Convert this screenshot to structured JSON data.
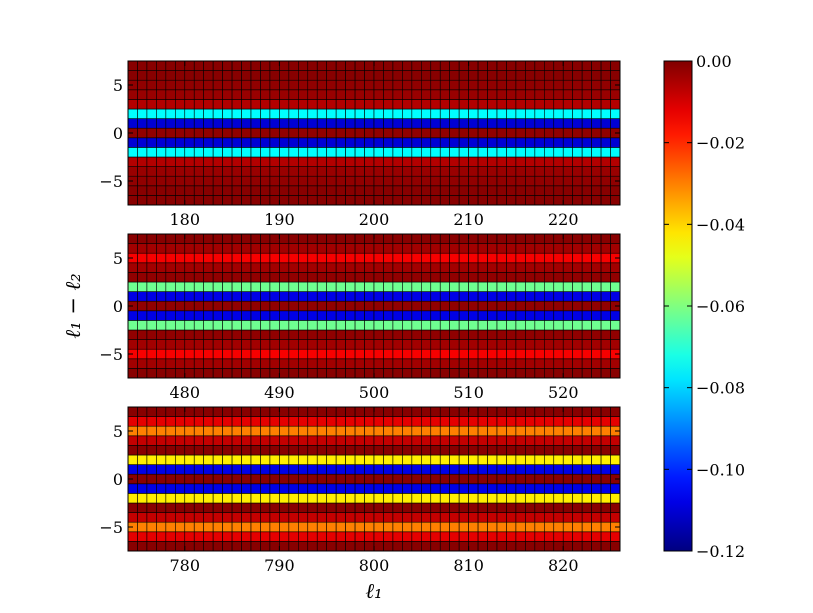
{
  "figure": {
    "ylabel": "ℓ₁ − ℓ₂",
    "xlabel": "ℓ₁"
  },
  "colorbar": {
    "colormap": "jet",
    "range": [
      -0.12,
      0.0
    ],
    "ticks": [
      "0.00",
      "−0.02",
      "−0.04",
      "−0.06",
      "−0.08",
      "−0.10",
      "−0.12"
    ],
    "tick_values": [
      0.0,
      -0.02,
      -0.04,
      -0.06,
      -0.08,
      -0.1,
      -0.12
    ]
  },
  "chart_data": [
    {
      "type": "heatmap",
      "xlim": [
        174,
        226
      ],
      "ylim": [
        -7.5,
        7.5
      ],
      "x_ticks": [
        180,
        190,
        200,
        210,
        220
      ],
      "y_ticks": [
        5,
        0,
        -5
      ],
      "y_tick_labels": [
        "5",
        "0",
        "−5"
      ],
      "rows_y": [
        -7,
        -6,
        -5,
        -4,
        -3,
        -2,
        -1,
        0,
        1,
        2,
        3,
        4,
        5,
        6,
        7
      ],
      "row_values": [
        -0.001,
        -0.001,
        -0.002,
        -0.003,
        -0.006,
        -0.075,
        -0.11,
        -0.002,
        -0.11,
        -0.075,
        -0.006,
        -0.003,
        -0.002,
        -0.001,
        -0.001
      ]
    },
    {
      "type": "heatmap",
      "xlim": [
        474,
        526
      ],
      "ylim": [
        -7.5,
        7.5
      ],
      "x_ticks": [
        480,
        490,
        500,
        510,
        520
      ],
      "y_ticks": [
        5,
        0,
        -5
      ],
      "y_tick_labels": [
        "5",
        "0",
        "−5"
      ],
      "rows_y": [
        -7,
        -6,
        -5,
        -4,
        -3,
        -2,
        -1,
        0,
        1,
        2,
        3,
        4,
        5,
        6,
        7
      ],
      "row_values": [
        -0.001,
        -0.004,
        -0.014,
        -0.004,
        -0.002,
        -0.062,
        -0.108,
        -0.002,
        -0.108,
        -0.062,
        -0.002,
        -0.004,
        -0.014,
        -0.004,
        -0.001
      ]
    },
    {
      "type": "heatmap",
      "xlim": [
        774,
        826
      ],
      "ylim": [
        -7.5,
        7.5
      ],
      "x_ticks": [
        780,
        790,
        800,
        810,
        820
      ],
      "y_ticks": [
        5,
        0,
        -5
      ],
      "y_tick_labels": [
        "5",
        "0",
        "−5"
      ],
      "rows_y": [
        -7,
        -6,
        -5,
        -4,
        -3,
        -2,
        -1,
        0,
        1,
        2,
        3,
        4,
        5,
        6,
        7
      ],
      "row_values": [
        -0.001,
        -0.012,
        -0.03,
        -0.008,
        -0.001,
        -0.043,
        -0.108,
        -0.001,
        -0.108,
        -0.043,
        -0.001,
        -0.008,
        -0.03,
        -0.012,
        -0.001
      ]
    }
  ]
}
